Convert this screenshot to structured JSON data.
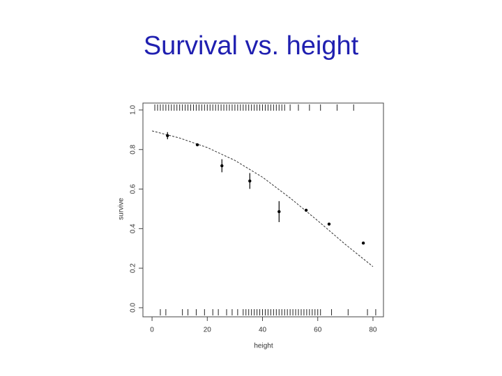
{
  "chart_data": {
    "type": "scatter",
    "title": "Survival vs. height",
    "x_label": "height",
    "y_label": "survive",
    "xlim": [
      -3.3,
      83.8
    ],
    "ylim": [
      -0.046,
      1.035
    ],
    "xticks": [
      0,
      20,
      40,
      60,
      80
    ],
    "yticks": [
      {
        "value": 0,
        "label": "0.0"
      },
      0.2,
      0.4,
      0.6,
      0.8,
      {
        "value": 1,
        "label": "1.0"
      }
    ],
    "series": [
      {
        "color": "#000000",
        "x": [
          5.6,
          16.4,
          25.3,
          35.4,
          46,
          55.8,
          64.1,
          76.5
        ],
        "values": [
          0.87,
          0.824,
          0.718,
          0.641,
          0.486,
          0.493,
          0.423,
          0.327
        ],
        "errors": [
          0.018,
          null,
          0.033,
          0.04,
          0.053,
          null,
          null,
          null
        ]
      }
    ],
    "fit": {
      "color": "#333333",
      "x": [
        0,
        10,
        20,
        30,
        40,
        50,
        60,
        70,
        80
      ],
      "values": [
        0.894,
        0.858,
        0.81,
        0.745,
        0.66,
        0.555,
        0.44,
        0.32,
        0.208
      ]
    },
    "rug_top": [
      1,
      2,
      3,
      4,
      5,
      6,
      7,
      8,
      9,
      10,
      11,
      12,
      13,
      14,
      15,
      16,
      17,
      18,
      19,
      20,
      21,
      22,
      23,
      24,
      25,
      26,
      27,
      28,
      29,
      30,
      31,
      32,
      33,
      34,
      35,
      36,
      37,
      38,
      39,
      40,
      41,
      42,
      43,
      44,
      45,
      46,
      47,
      48,
      50,
      53,
      57,
      61,
      67,
      73
    ],
    "rug_bottom": [
      3,
      5,
      11,
      13,
      16,
      19,
      22,
      24,
      27,
      29,
      31,
      33,
      34,
      35,
      36,
      37,
      38,
      39,
      40,
      41,
      42,
      43,
      44,
      45,
      46,
      47,
      48,
      49,
      50,
      51,
      52,
      53,
      54,
      55,
      56,
      57,
      58,
      59,
      60,
      61,
      65,
      71,
      78,
      81
    ]
  }
}
